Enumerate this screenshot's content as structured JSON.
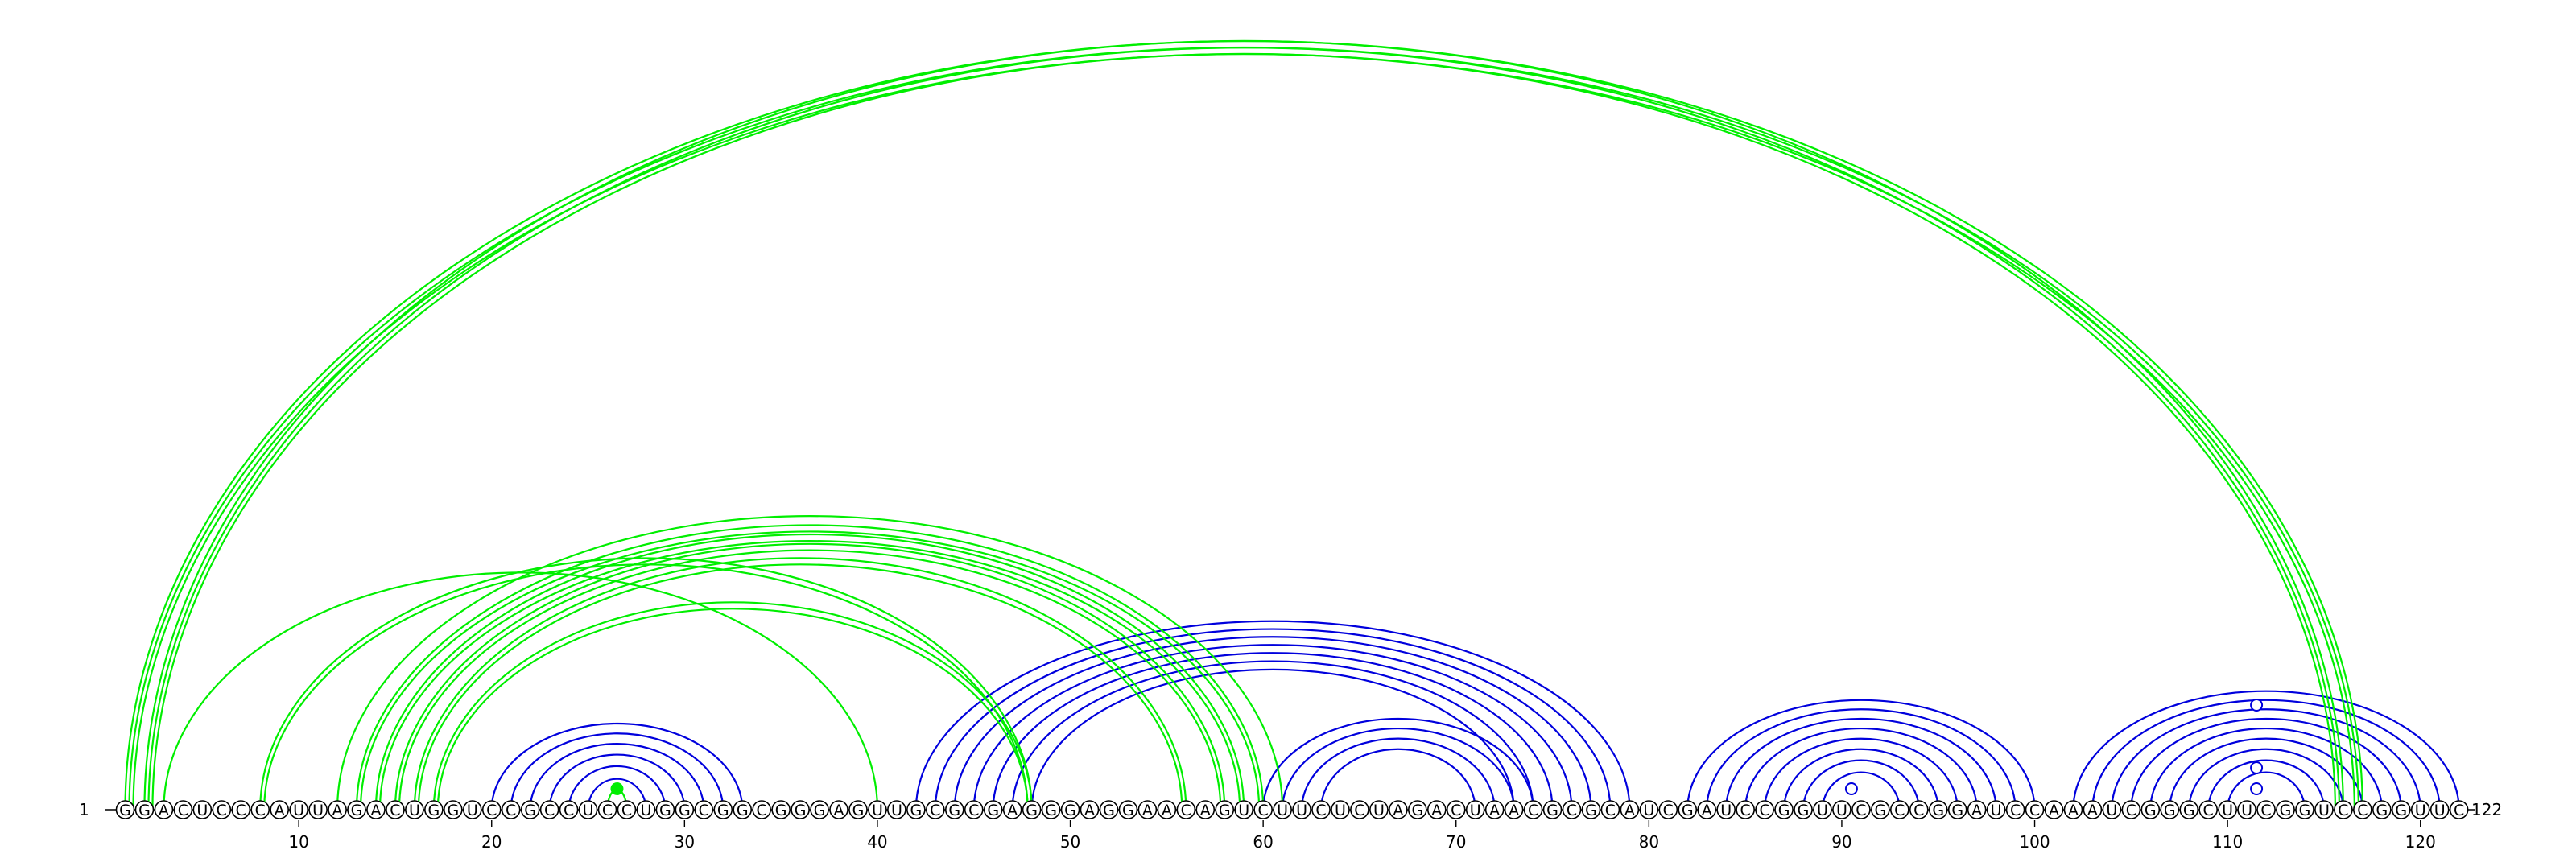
{
  "sequence": "GGACUCCCAUUAGACUGGUCCGCCUCCUGGCGGCGGGAGUUGCGCGAGGGAGGAACAGUCUUCUCUAGACUAACGCGCAUCGAUCCGGUUCGCCGGAUCCAAAUCGGGCUUCGGUCCGGUUC",
  "start_label": "1",
  "end_label": "122",
  "ticks": [
    "10",
    "20",
    "30",
    "40",
    "50",
    "60",
    "70",
    "80",
    "90",
    "100",
    "110",
    "120"
  ],
  "colors": {
    "blue_pair": "#0000dd",
    "green_pair": "#00ee00",
    "backbone": "#000000"
  },
  "blue_helices": [
    {
      "i": 20,
      "j": 33,
      "len": 6
    },
    {
      "i": 42,
      "j": 79,
      "len": 7
    },
    {
      "i": 60,
      "j": 74,
      "len": 4
    },
    {
      "i": 82,
      "j": 100,
      "len": 8
    },
    {
      "i": 102,
      "j": 122,
      "len": 9
    }
  ],
  "green_pairs": [
    {
      "i": 1,
      "j": 117,
      "count": 3
    },
    {
      "i": 2,
      "j": 116,
      "count": 3
    },
    {
      "i": 3,
      "j": 40,
      "count": 1
    },
    {
      "i": 8,
      "j": 48,
      "count": 2
    },
    {
      "i": 12,
      "j": 61,
      "count": 1
    },
    {
      "i": 13,
      "j": 60,
      "count": 2
    },
    {
      "i": 14,
      "j": 59,
      "count": 2
    },
    {
      "i": 15,
      "j": 58,
      "count": 2
    },
    {
      "i": 16,
      "j": 56,
      "count": 2
    },
    {
      "i": 17,
      "j": 48,
      "count": 2
    },
    {
      "i": 26,
      "j": 27,
      "count": 1
    }
  ],
  "markers": [
    {
      "type": "dot",
      "pos": 26.5,
      "color": "green_pair",
      "helix_arc": 0
    },
    {
      "type": "ring",
      "pos": 90.5,
      "color": "blue_pair",
      "helix_arc": 0
    },
    {
      "type": "ring",
      "pos": 111.5,
      "color": "blue_pair",
      "helix_arc": 0
    },
    {
      "type": "ring",
      "pos": 111.5,
      "color": "blue_pair",
      "helix_arc": 2
    },
    {
      "type": "ring",
      "pos": 111.5,
      "color": "blue_pair",
      "helix_arc": 8
    }
  ]
}
